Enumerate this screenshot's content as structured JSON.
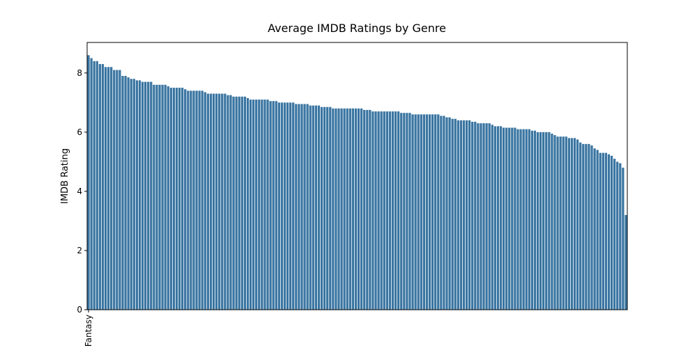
{
  "chart_data": {
    "type": "bar",
    "title": "Average IMDB Ratings by Genre",
    "y_label": "IMDB Rating",
    "color": "#3a75a1",
    "categories": [
      "Fantasy",
      null,
      null,
      null,
      null,
      null,
      null,
      null,
      null,
      null,
      null,
      null,
      null,
      null,
      null,
      null,
      null,
      null,
      null,
      null,
      null,
      null,
      null,
      null,
      null,
      null,
      null,
      null,
      null,
      null,
      null,
      null,
      null,
      null,
      null,
      null,
      null,
      null,
      null,
      null,
      null,
      null,
      null,
      null,
      null,
      null,
      null,
      null,
      null,
      null,
      null,
      null,
      null,
      null,
      null,
      null,
      null,
      null,
      null,
      null,
      null,
      null,
      null,
      null,
      null,
      null,
      null,
      null,
      null,
      null,
      null,
      null,
      null,
      null,
      null,
      null,
      null,
      null,
      null,
      null,
      null,
      null,
      null,
      null,
      null,
      null,
      null,
      null,
      null,
      null,
      null,
      null,
      null,
      null,
      null,
      null,
      null,
      null,
      null,
      null,
      null,
      null,
      null,
      null,
      null,
      null,
      null,
      null,
      null,
      null,
      null,
      null,
      null,
      null,
      null,
      null,
      null,
      null,
      null,
      null,
      null,
      null,
      null,
      null,
      null,
      null,
      null,
      null,
      null,
      null,
      null,
      null,
      null,
      null,
      null,
      null,
      null,
      null,
      null,
      null,
      null,
      null,
      null,
      null,
      null,
      null,
      null,
      null,
      null,
      null,
      null,
      null,
      null,
      null,
      null,
      null,
      null,
      null,
      null,
      null,
      null,
      null,
      null,
      null,
      null,
      null,
      null,
      null,
      null,
      null,
      null,
      null,
      null,
      null,
      null,
      null,
      null,
      null,
      null,
      null,
      null,
      null,
      null,
      null,
      null,
      null,
      null,
      null,
      null,
      null
    ],
    "values": [
      8.6,
      8.5,
      8.4,
      8.4,
      8.3,
      8.3,
      8.2,
      8.2,
      8.2,
      8.1,
      8.1,
      8.1,
      7.9,
      7.9,
      7.85,
      7.8,
      7.8,
      7.75,
      7.75,
      7.7,
      7.7,
      7.7,
      7.7,
      7.6,
      7.6,
      7.6,
      7.6,
      7.6,
      7.55,
      7.5,
      7.5,
      7.5,
      7.5,
      7.5,
      7.45,
      7.4,
      7.4,
      7.4,
      7.4,
      7.4,
      7.4,
      7.35,
      7.3,
      7.3,
      7.3,
      7.3,
      7.3,
      7.3,
      7.3,
      7.25,
      7.25,
      7.2,
      7.2,
      7.2,
      7.2,
      7.2,
      7.15,
      7.1,
      7.1,
      7.1,
      7.1,
      7.1,
      7.1,
      7.1,
      7.05,
      7.05,
      7.05,
      7.0,
      7.0,
      7.0,
      7.0,
      7.0,
      7.0,
      6.95,
      6.95,
      6.95,
      6.95,
      6.95,
      6.9,
      6.9,
      6.9,
      6.9,
      6.85,
      6.85,
      6.85,
      6.85,
      6.8,
      6.8,
      6.8,
      6.8,
      6.8,
      6.8,
      6.8,
      6.8,
      6.8,
      6.8,
      6.8,
      6.75,
      6.75,
      6.75,
      6.7,
      6.7,
      6.7,
      6.7,
      6.7,
      6.7,
      6.7,
      6.7,
      6.7,
      6.7,
      6.65,
      6.65,
      6.65,
      6.65,
      6.6,
      6.6,
      6.6,
      6.6,
      6.6,
      6.6,
      6.6,
      6.6,
      6.6,
      6.6,
      6.55,
      6.55,
      6.5,
      6.5,
      6.45,
      6.45,
      6.4,
      6.4,
      6.4,
      6.4,
      6.4,
      6.35,
      6.35,
      6.3,
      6.3,
      6.3,
      6.3,
      6.3,
      6.25,
      6.2,
      6.2,
      6.2,
      6.15,
      6.15,
      6.15,
      6.15,
      6.15,
      6.1,
      6.1,
      6.1,
      6.1,
      6.1,
      6.05,
      6.05,
      6.0,
      6.0,
      6.0,
      6.0,
      6.0,
      5.95,
      5.9,
      5.85,
      5.85,
      5.85,
      5.85,
      5.8,
      5.8,
      5.8,
      5.75,
      5.65,
      5.6,
      5.6,
      5.6,
      5.55,
      5.45,
      5.4,
      5.3,
      5.3,
      5.3,
      5.25,
      5.2,
      5.1,
      5.0,
      4.95,
      4.8,
      3.2
    ],
    "ylim": [
      0,
      9.03
    ],
    "yticks": [
      0,
      2,
      4,
      6,
      8
    ]
  }
}
